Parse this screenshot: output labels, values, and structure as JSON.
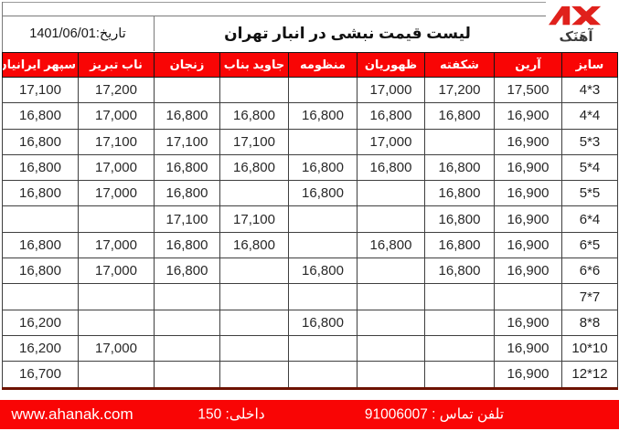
{
  "header": {
    "date": "تاریخ:1401/06/01",
    "title": "لیست قیمت نبشی در انبار تهران",
    "logo_text": "آهَنَک"
  },
  "table": {
    "columns": [
      "سایز",
      "آرین",
      "شکفته",
      "ظهوریان",
      "منظومه",
      "جاوید بناب",
      "زنجان",
      "ناب تبریز",
      "سپهر ایرانیان"
    ],
    "rows": [
      {
        "size": "4*3",
        "values": [
          "17,500",
          "17,200",
          "17,000",
          "",
          "",
          "",
          "17,200",
          "17,100"
        ]
      },
      {
        "size": "4*4",
        "values": [
          "16,900",
          "16,800",
          "16,800",
          "16,800",
          "16,800",
          "16,800",
          "17,000",
          "16,800"
        ]
      },
      {
        "size": "5*3",
        "values": [
          "16,900",
          "",
          "17,000",
          "",
          "17,100",
          "17,100",
          "17,100",
          "16,800"
        ]
      },
      {
        "size": "5*4",
        "values": [
          "16,900",
          "16,800",
          "16,800",
          "16,800",
          "16,800",
          "16,800",
          "17,000",
          "16,800"
        ]
      },
      {
        "size": "5*5",
        "values": [
          "16,900",
          "16,800",
          "",
          "16,800",
          "",
          "16,800",
          "17,000",
          "16,800"
        ]
      },
      {
        "size": "6*4",
        "values": [
          "16,900",
          "16,800",
          "",
          "",
          "17,100",
          "17,100",
          "",
          ""
        ]
      },
      {
        "size": "6*5",
        "values": [
          "16,900",
          "16,800",
          "16,800",
          "",
          "16,800",
          "16,800",
          "17,000",
          "16,800"
        ]
      },
      {
        "size": "6*6",
        "values": [
          "16,900",
          "16,800",
          "",
          "16,800",
          "",
          "16,800",
          "17,000",
          "16,800"
        ]
      },
      {
        "size": "7*7",
        "values": [
          "",
          "",
          "",
          "",
          "",
          "",
          "",
          ""
        ]
      },
      {
        "size": "8*8",
        "values": [
          "16,900",
          "",
          "",
          "16,800",
          "",
          "",
          "",
          "16,200"
        ]
      },
      {
        "size": "10*10",
        "values": [
          "16,900",
          "",
          "",
          "",
          "",
          "",
          "17,000",
          "16,200"
        ]
      },
      {
        "size": "12*12",
        "values": [
          "16,900",
          "",
          "",
          "",
          "",
          "",
          "",
          "16,700"
        ]
      }
    ]
  },
  "footer": {
    "phone_label": "تلفن تماس : 91006007",
    "extension_label": "داخلی: 150",
    "website": "www.ahanak.com"
  },
  "colors": {
    "primary_red": "#f90505",
    "logo_red": "#e0211c",
    "table_bottom_border": "#6d1200"
  }
}
